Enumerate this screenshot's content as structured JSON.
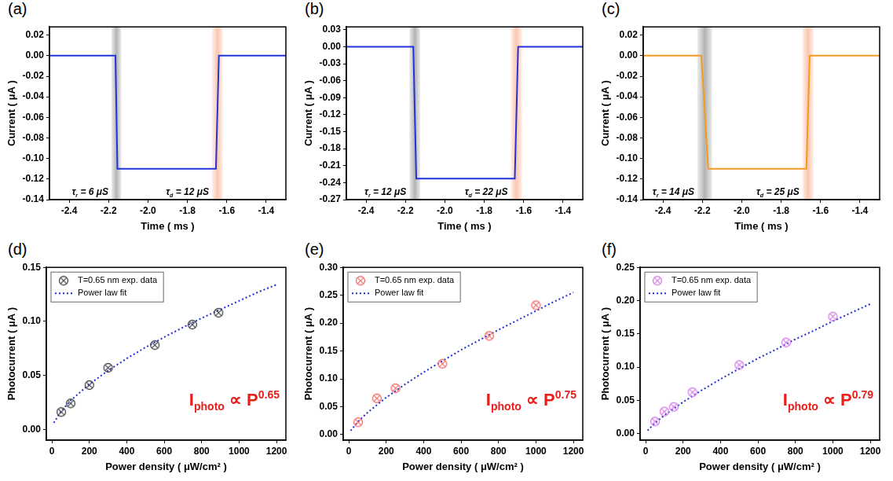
{
  "chart_data": [
    {
      "panel_label": "(a)",
      "type": "line",
      "x_label": "Time ( ms )",
      "y_label": "Current ( μA )",
      "xlim": [
        -2.5,
        -1.3
      ],
      "xticks": [
        -2.4,
        -2.2,
        {
          "value": -2.0,
          "label": "-2.0"
        },
        -1.8,
        -1.6,
        -1.4
      ],
      "ylim": [
        -0.14,
        0.028
      ],
      "yticks": [
        0.02,
        {
          "value": 0,
          "label": "0.00"
        },
        -0.02,
        -0.04,
        -0.06,
        -0.08,
        {
          "value": -0.1,
          "label": "-0.10"
        },
        -0.12,
        -0.14
      ],
      "grid": false,
      "color": "#2233dd",
      "x": [
        -2.5,
        -2.165,
        -2.155,
        -1.655,
        -1.64,
        -1.3
      ],
      "values": [
        0,
        0,
        -0.11,
        -0.11,
        0,
        0
      ],
      "annotations": [
        {
          "parts": [
            "τ",
            {
              "sub": "r"
            },
            " = 6 μS"
          ]
        },
        {
          "parts": [
            "τ",
            {
              "sub": "d"
            },
            " = 12 μS"
          ]
        }
      ]
    },
    {
      "panel_label": "(b)",
      "type": "line",
      "x_label": "Time ( ms )",
      "y_label": "Current ( μA )",
      "xlim": [
        -2.5,
        -1.3
      ],
      "xticks": [
        -2.4,
        -2.2,
        {
          "value": -2.0,
          "label": "-2.0"
        },
        -1.8,
        -1.6,
        -1.4
      ],
      "ylim": [
        -0.27,
        0.035
      ],
      "yticks": [
        0.03,
        {
          "value": 0,
          "label": "0.00"
        },
        -0.03,
        -0.06,
        -0.09,
        -0.12,
        -0.15,
        -0.18,
        -0.21,
        -0.24,
        -0.27
      ],
      "grid": false,
      "color": "#2233dd",
      "x": [
        -2.5,
        -2.16,
        -2.145,
        -1.645,
        -1.628,
        -1.3
      ],
      "values": [
        0,
        0,
        -0.233,
        -0.233,
        0,
        0
      ],
      "annotations": [
        {
          "parts": [
            "τ",
            {
              "sub": "r"
            },
            " = 12 μS"
          ]
        },
        {
          "parts": [
            "τ",
            {
              "sub": "d"
            },
            " = 22 μS"
          ]
        }
      ]
    },
    {
      "panel_label": "(c)",
      "type": "line",
      "x_label": "Time ( ms )",
      "y_label": "Current ( μA )",
      "xlim": [
        -2.5,
        -1.3
      ],
      "xticks": [
        -2.4,
        -2.2,
        {
          "value": -2.0,
          "label": "-2.0"
        },
        -1.8,
        -1.6,
        -1.4
      ],
      "ylim": [
        -0.14,
        0.028
      ],
      "yticks": [
        0.02,
        {
          "value": 0,
          "label": "0.00"
        },
        -0.02,
        -0.04,
        -0.06,
        -0.08,
        {
          "value": -0.1,
          "label": "-0.10"
        },
        -0.12,
        -0.14
      ],
      "grid": false,
      "color": "#f39a1f",
      "x": [
        -2.5,
        -2.205,
        -2.17,
        -1.672,
        -1.655,
        -1.3
      ],
      "values": [
        0,
        0,
        -0.11,
        -0.11,
        0,
        0
      ],
      "annotations": [
        {
          "parts": [
            "τ",
            {
              "sub": "r"
            },
            " = 14 μS"
          ]
        },
        {
          "parts": [
            "τ",
            {
              "sub": "d"
            },
            " = 25 μS"
          ]
        }
      ]
    },
    {
      "panel_label": "(d)",
      "type": "scatter",
      "x_label": "Power density ( μW/cm² )",
      "y_label": "Photocurrent ( μA )",
      "xlim": [
        -30,
        1250
      ],
      "xticks": [
        0,
        200,
        400,
        600,
        800,
        1000,
        1200
      ],
      "ylim": [
        -0.01,
        0.15
      ],
      "yticks": [
        {
          "value": 0,
          "label": "0.00"
        },
        0.05,
        {
          "value": 0.1,
          "label": "0.10"
        },
        0.15
      ],
      "grid": false,
      "legend": "upper left",
      "series": [
        {
          "name": "T=0.65 nm exp. data",
          "type": "scatter",
          "marker": "circle-x",
          "color": "#444444",
          "x": [
            50,
            100,
            200,
            300,
            550,
            750,
            890
          ],
          "values": [
            0.016,
            0.024,
            0.041,
            0.057,
            0.078,
            0.097,
            0.108
          ]
        },
        {
          "name": "Power law fit",
          "type": "line",
          "line_style": "dotted",
          "color": "#1c2fd6",
          "x": [
            10,
            50,
            100,
            200,
            300,
            400,
            500,
            600,
            700,
            800,
            900,
            1000,
            1100,
            1200
          ],
          "values": [
            0.006,
            0.017,
            0.0267,
            0.0418,
            0.0544,
            0.0656,
            0.0759,
            0.0854,
            0.0944,
            0.103,
            0.111,
            0.119,
            0.127,
            0.134
          ]
        }
      ],
      "annotations": [
        {
          "parts": [
            "I",
            {
              "sub": "photo"
            },
            " ∝ P",
            {
              "sup": "0.65"
            }
          ],
          "color": "#e8201c"
        }
      ]
    },
    {
      "panel_label": "(e)",
      "type": "scatter",
      "x_label": "Power density ( μW/cm² )",
      "y_label": "Photocurrent ( μA )",
      "xlim": [
        -30,
        1250
      ],
      "xticks": [
        0,
        200,
        400,
        600,
        800,
        1000,
        1200
      ],
      "ylim": [
        -0.01,
        0.3
      ],
      "yticks": [
        {
          "value": 0,
          "label": "0.00"
        },
        0.05,
        {
          "value": 0.1,
          "label": "0.10"
        },
        0.15,
        {
          "value": 0.2,
          "label": "0.20"
        },
        0.25,
        {
          "value": 0.3,
          "label": "0.30"
        }
      ],
      "grid": false,
      "legend": "upper left",
      "series": [
        {
          "name": "T=0.65 nm exp. data",
          "type": "scatter",
          "marker": "circle-x",
          "color": "#f06a6a",
          "x": [
            50,
            150,
            250,
            500,
            750,
            1000
          ],
          "values": [
            0.022,
            0.065,
            0.083,
            0.127,
            0.177,
            0.232
          ]
        },
        {
          "name": "Power law fit",
          "type": "line",
          "line_style": "dotted",
          "color": "#1c2fd6",
          "x": [
            10,
            50,
            100,
            200,
            300,
            400,
            500,
            600,
            700,
            800,
            900,
            1000,
            1100,
            1200
          ],
          "values": [
            0.007,
            0.0235,
            0.0395,
            0.0665,
            0.09,
            0.112,
            0.132,
            0.152,
            0.17,
            0.188,
            0.205,
            0.222,
            0.239,
            0.255
          ]
        }
      ],
      "annotations": [
        {
          "parts": [
            "I",
            {
              "sub": "photo"
            },
            " ∝ P",
            {
              "sup": "0.75"
            }
          ],
          "color": "#e8201c"
        }
      ]
    },
    {
      "panel_label": "(f)",
      "type": "scatter",
      "x_label": "Power density ( μW/cm² )",
      "y_label": "Photocurrent ( μA )",
      "xlim": [
        -30,
        1250
      ],
      "xticks": [
        0,
        200,
        400,
        600,
        800,
        1000,
        1200
      ],
      "ylim": [
        -0.01,
        0.25
      ],
      "yticks": [
        {
          "value": 0,
          "label": "0.00"
        },
        0.05,
        {
          "value": 0.1,
          "label": "0.10"
        },
        0.15,
        {
          "value": 0.2,
          "label": "0.20"
        },
        0.25
      ],
      "grid": false,
      "legend": "upper left",
      "series": [
        {
          "name": "T=0.65 nm exp. data",
          "type": "scatter",
          "marker": "circle-x",
          "color": "#d67be8",
          "x": [
            50,
            100,
            150,
            250,
            500,
            750,
            1000
          ],
          "values": [
            0.018,
            0.033,
            0.04,
            0.062,
            0.103,
            0.137,
            0.176
          ]
        },
        {
          "name": "Power law fit",
          "type": "line",
          "line_style": "dotted",
          "color": "#1c2fd6",
          "x": [
            10,
            50,
            100,
            200,
            300,
            400,
            500,
            600,
            700,
            800,
            900,
            1000,
            1100,
            1200
          ],
          "values": [
            0.0044,
            0.0158,
            0.0274,
            0.0474,
            0.0652,
            0.0818,
            0.0976,
            0.113,
            0.127,
            0.142,
            0.155,
            0.169,
            0.182,
            0.195
          ]
        }
      ],
      "annotations": [
        {
          "parts": [
            "I",
            {
              "sub": "photo"
            },
            " ∝ P",
            {
              "sup": "0.79"
            }
          ],
          "color": "#e8201c"
        }
      ]
    }
  ]
}
